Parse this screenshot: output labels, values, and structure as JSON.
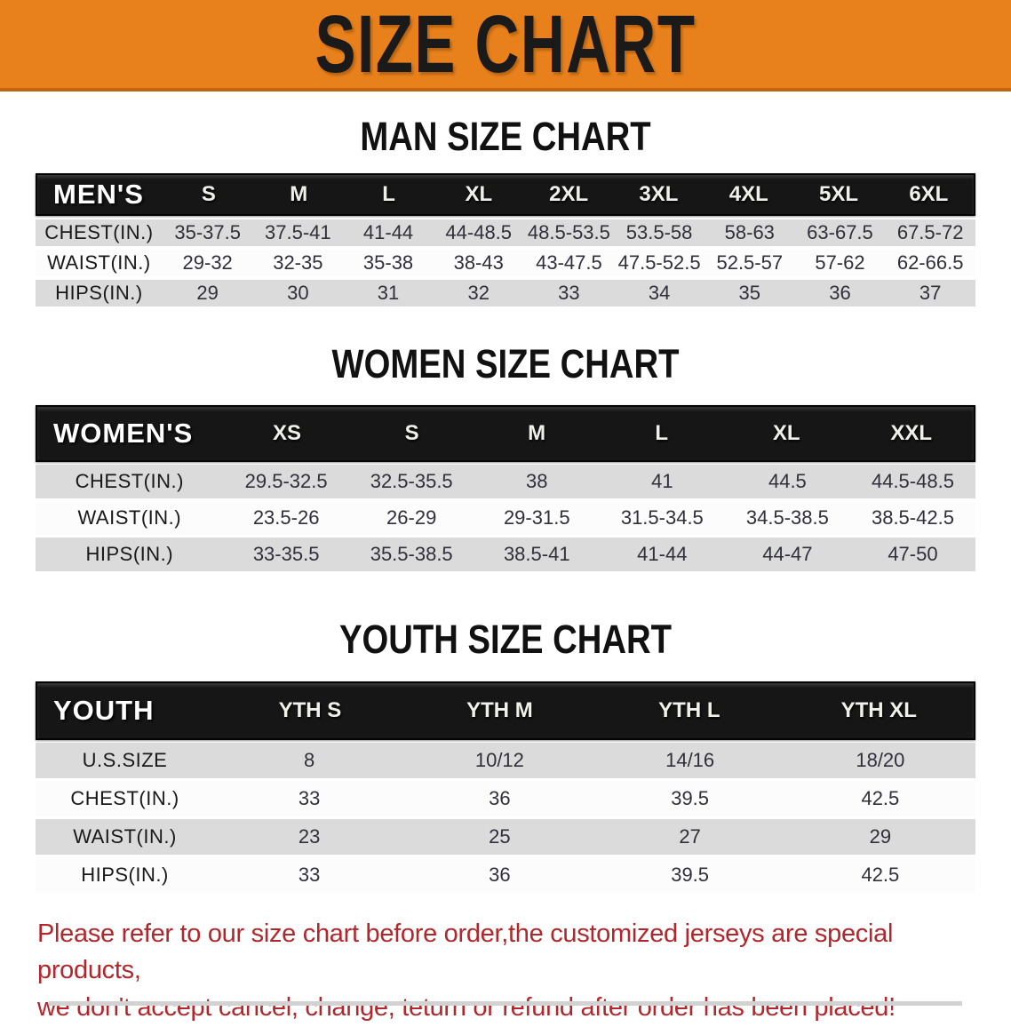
{
  "banner": {
    "title": "SIZE CHART",
    "bg_color": "#E8811C"
  },
  "footer": {
    "line1": "Please refer to our size chart before order,the customized jerseys are special products,",
    "line2": "we don't accept cancel, change, teturn or refund after order has been placed!",
    "color": "#B2272C"
  },
  "chart_data": [
    {
      "type": "table",
      "title": "MAN SIZE CHART",
      "corner_label": "MEN'S",
      "columns": [
        "S",
        "M",
        "L",
        "XL",
        "2XL",
        "3XL",
        "4XL",
        "5XL",
        "6XL"
      ],
      "row_labels": [
        "CHEST(IN.)",
        "WAIST(IN.)",
        "HIPS(IN.)"
      ],
      "rows": [
        [
          "35-37.5",
          "37.5-41",
          "41-44",
          "44-48.5",
          "48.5-53.5",
          "53.5-58",
          "58-63",
          "63-67.5",
          "67.5-72"
        ],
        [
          "29-32",
          "32-35",
          "35-38",
          "38-43",
          "43-47.5",
          "47.5-52.5",
          "52.5-57",
          "57-62",
          "62-66.5"
        ],
        [
          "29",
          "30",
          "31",
          "32",
          "33",
          "34",
          "35",
          "36",
          "37"
        ]
      ]
    },
    {
      "type": "table",
      "title": "WOMEN SIZE CHART",
      "corner_label": "WOMEN'S",
      "columns": [
        "XS",
        "S",
        "M",
        "L",
        "XL",
        "XXL"
      ],
      "row_labels": [
        "CHEST(IN.)",
        "WAIST(IN.)",
        "HIPS(IN.)"
      ],
      "rows": [
        [
          "29.5-32.5",
          "32.5-35.5",
          "38",
          "41",
          "44.5",
          "44.5-48.5"
        ],
        [
          "23.5-26",
          "26-29",
          "29-31.5",
          "31.5-34.5",
          "34.5-38.5",
          "38.5-42.5"
        ],
        [
          "33-35.5",
          "35.5-38.5",
          "38.5-41",
          "41-44",
          "44-47",
          "47-50"
        ]
      ]
    },
    {
      "type": "table",
      "title": "YOUTH SIZE CHART",
      "corner_label": "YOUTH",
      "columns": [
        "YTH S",
        "YTH M",
        "YTH L",
        "YTH XL"
      ],
      "row_labels": [
        "U.S.SIZE",
        "CHEST(IN.)",
        "WAIST(IN.)",
        "HIPS(IN.)"
      ],
      "rows": [
        [
          "8",
          "10/12",
          "14/16",
          "18/20"
        ],
        [
          "33",
          "36",
          "39.5",
          "42.5"
        ],
        [
          "23",
          "25",
          "27",
          "29"
        ],
        [
          "33",
          "36",
          "39.5",
          "42.5"
        ]
      ]
    }
  ]
}
